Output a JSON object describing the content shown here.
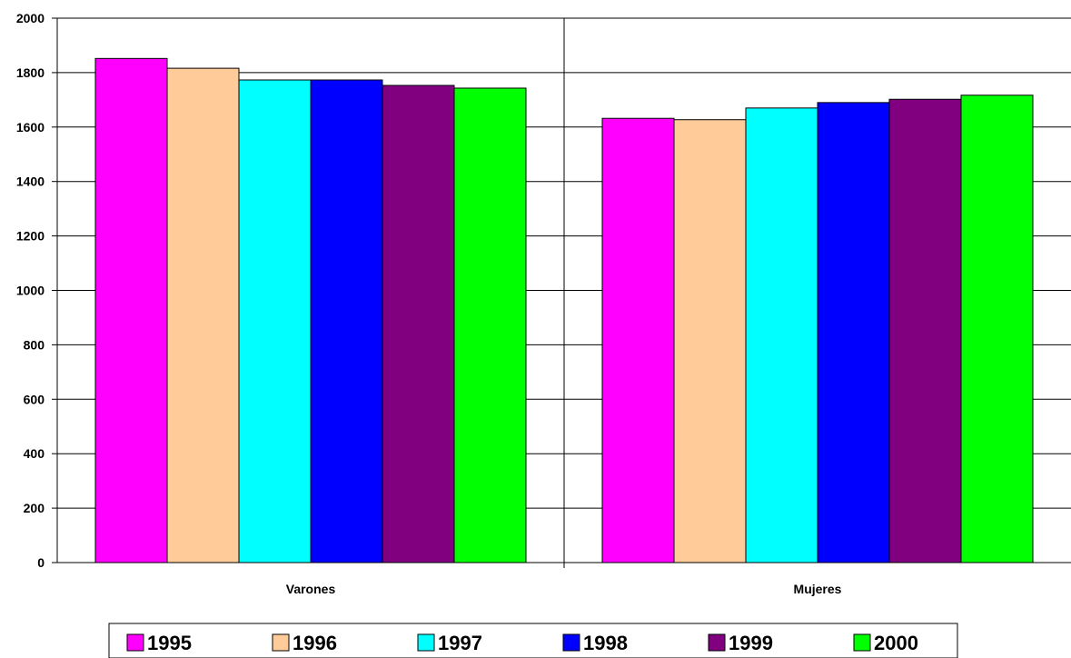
{
  "chart_data": {
    "type": "bar",
    "categories": [
      "Varones",
      "Mujeres"
    ],
    "series": [
      {
        "name": "1995",
        "color": "#ff00ff",
        "values": [
          1852,
          1632
        ]
      },
      {
        "name": "1996",
        "color": "#ffcc99",
        "values": [
          1816,
          1627
        ]
      },
      {
        "name": "1997",
        "color": "#00ffff",
        "values": [
          1773,
          1670
        ]
      },
      {
        "name": "1998",
        "color": "#0000ff",
        "values": [
          1773,
          1690
        ]
      },
      {
        "name": "1999",
        "color": "#800080",
        "values": [
          1753,
          1702
        ]
      },
      {
        "name": "2000",
        "color": "#00ff00",
        "values": [
          1743,
          1717
        ]
      }
    ],
    "yticks": [
      "0",
      "200",
      "400",
      "600",
      "800",
      "1000",
      "1200",
      "1400",
      "1600",
      "1800",
      "2000"
    ],
    "ylim": [
      0,
      2000
    ],
    "title": "",
    "xlabel": "",
    "ylabel": "",
    "grid": true,
    "legend_position": "bottom"
  }
}
